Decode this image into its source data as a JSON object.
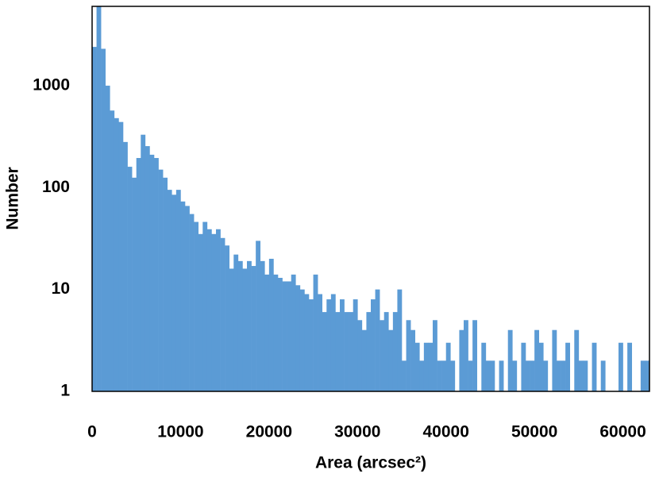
{
  "chart_data": {
    "type": "histogram",
    "xlabel": "Area (arcsec²)",
    "ylabel": "Number",
    "bins": [
      0,
      500,
      1000,
      1500,
      2000,
      2500,
      3000,
      3500,
      4000,
      4500,
      5000,
      5500,
      6000,
      6500,
      7000,
      7500,
      8000,
      8500,
      9000,
      9500,
      10000,
      10500,
      11000,
      11500,
      12000,
      12500,
      13000,
      13500,
      14000,
      14500,
      15000,
      15500,
      16000,
      16500,
      17000,
      17500,
      18000,
      18500,
      19000,
      19500,
      20000,
      20500,
      21000,
      21500,
      22000,
      22500,
      23000,
      23500,
      24000,
      24500,
      25000,
      25500,
      26000,
      26500,
      27000,
      27500,
      28000,
      28500,
      29000,
      29500,
      30000,
      30500,
      31000,
      31500,
      32000,
      32500,
      33000,
      33500,
      34000,
      34500,
      35000,
      35500,
      36000,
      36500,
      37000,
      37500,
      38000,
      38500,
      39000,
      39500,
      40000,
      40500,
      41000,
      41500,
      42000,
      42500,
      43000,
      43500,
      44000,
      44500,
      45000,
      45500,
      46000,
      46500,
      47000,
      47500,
      48000,
      48500,
      49000,
      49500,
      50000,
      50500,
      51000,
      51500,
      52000,
      52500,
      53000,
      53500,
      54000,
      54500,
      55000,
      55500,
      56000,
      56500,
      57000,
      57500,
      58000,
      58500,
      59000,
      59500,
      60000,
      60500,
      61000,
      61500,
      62000,
      62500,
      63000
    ],
    "counts": [
      2400,
      6000,
      2300,
      1000,
      570,
      480,
      440,
      280,
      160,
      125,
      195,
      330,
      255,
      210,
      195,
      150,
      125,
      95,
      85,
      95,
      73,
      66,
      55,
      46,
      35,
      46,
      39,
      35,
      39,
      32,
      27,
      16,
      22,
      19,
      16,
      19,
      17,
      30,
      19,
      14,
      20,
      14,
      13,
      12,
      12,
      14,
      11,
      10,
      9,
      8,
      14,
      9,
      6,
      8,
      9,
      6,
      8,
      6,
      6,
      8,
      5,
      4,
      6,
      8,
      10,
      5,
      6,
      4,
      6,
      10,
      2,
      5,
      4,
      3,
      2,
      3,
      3,
      5,
      2,
      2,
      3,
      2,
      1,
      4,
      5,
      2,
      5,
      1,
      3,
      2,
      2,
      1,
      2,
      1,
      4,
      2,
      1,
      3,
      2,
      2,
      4,
      3,
      2,
      1,
      4,
      2,
      2,
      3,
      1,
      4,
      2,
      2,
      1,
      3,
      1,
      2,
      1,
      1,
      1,
      3,
      1,
      3,
      1,
      0,
      2,
      2
    ],
    "color": "#5b9bd5",
    "xlim": [
      0,
      63000
    ],
    "xticks": [
      0,
      10000,
      20000,
      30000,
      40000,
      50000,
      60000
    ],
    "ylim": [
      1,
      6000
    ],
    "yticks": [
      1,
      10,
      100,
      1000
    ],
    "yscale": "log"
  }
}
